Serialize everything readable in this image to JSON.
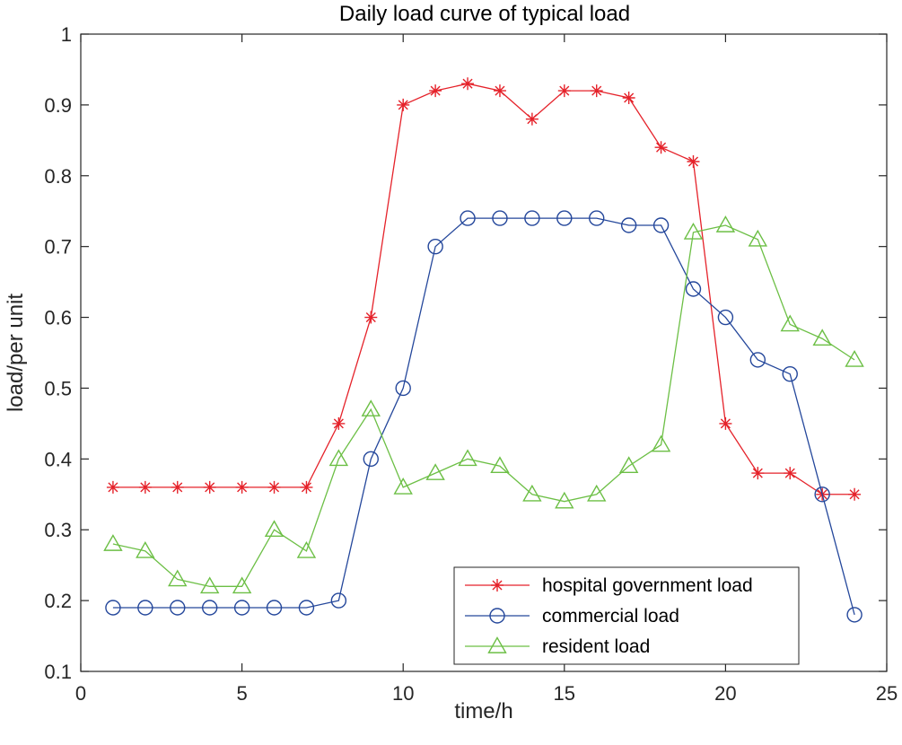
{
  "chart_data": {
    "type": "line",
    "title": "Daily load curve of typical load",
    "xlabel": "time/h",
    "ylabel": "load/per unit",
    "xlim": [
      0,
      25
    ],
    "ylim": [
      0.1,
      1
    ],
    "xticks": [
      0,
      5,
      10,
      15,
      20,
      25
    ],
    "yticks": [
      0.1,
      0.2,
      0.3,
      0.4,
      0.5,
      0.6,
      0.7,
      0.8,
      0.9,
      1
    ],
    "ytick_labels": [
      "0.1",
      "0.2",
      "0.3",
      "0.4",
      "0.5",
      "0.6",
      "0.7",
      "0.8",
      "0.9",
      "1"
    ],
    "grid": false,
    "legend_position": "bottom-right",
    "x": [
      1,
      2,
      3,
      4,
      5,
      6,
      7,
      8,
      9,
      10,
      11,
      12,
      13,
      14,
      15,
      16,
      17,
      18,
      19,
      20,
      21,
      22,
      23,
      24
    ],
    "series": [
      {
        "name": "hospital government load",
        "color": "#e5222a",
        "marker": "asterisk",
        "values": [
          0.36,
          0.36,
          0.36,
          0.36,
          0.36,
          0.36,
          0.36,
          0.45,
          0.6,
          0.9,
          0.92,
          0.93,
          0.92,
          0.88,
          0.92,
          0.92,
          0.91,
          0.84,
          0.82,
          0.45,
          0.38,
          0.38,
          0.35,
          0.35
        ]
      },
      {
        "name": "commercial load",
        "color": "#24479b",
        "marker": "circle",
        "values": [
          0.19,
          0.19,
          0.19,
          0.19,
          0.19,
          0.19,
          0.19,
          0.2,
          0.4,
          0.5,
          0.7,
          0.74,
          0.74,
          0.74,
          0.74,
          0.74,
          0.73,
          0.73,
          0.64,
          0.6,
          0.54,
          0.52,
          0.35,
          0.18
        ]
      },
      {
        "name": "resident load",
        "color": "#6cbf45",
        "marker": "triangle",
        "values": [
          0.28,
          0.27,
          0.23,
          0.22,
          0.22,
          0.3,
          0.27,
          0.4,
          0.47,
          0.36,
          0.38,
          0.4,
          0.39,
          0.35,
          0.34,
          0.35,
          0.39,
          0.42,
          0.72,
          0.73,
          0.71,
          0.59,
          0.57,
          0.54
        ]
      }
    ]
  }
}
